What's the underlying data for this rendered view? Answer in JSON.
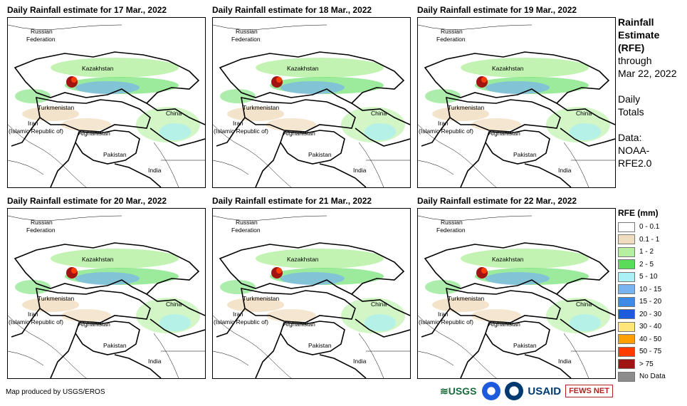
{
  "panels": [
    {
      "title": "Daily Rainfall estimate for 17 Mar., 2022"
    },
    {
      "title": "Daily Rainfall estimate for 18 Mar., 2022"
    },
    {
      "title": "Daily Rainfall estimate for 19 Mar., 2022"
    },
    {
      "title": "Daily Rainfall estimate for 20 Mar., 2022"
    },
    {
      "title": "Daily Rainfall estimate for 21 Mar., 2022"
    },
    {
      "title": "Daily Rainfall estimate for 22 Mar., 2022"
    }
  ],
  "map_labels": {
    "russia_1": "Russian",
    "russia_2": "Federation",
    "kazakhstan": "Kazakhstan",
    "turkmenistan": "Turkmenistan",
    "china": "China",
    "iran_1": "Iran",
    "iran_2": "(Islamic Republic of)",
    "afghanistan": "Afghanistan",
    "pakistan": "Pakistan",
    "india": "India"
  },
  "side": {
    "line1": "Rainfall",
    "line2": "Estimate",
    "line3": "(RFE)",
    "line4": "through",
    "line5": "Mar 22, 2022",
    "line6": "Daily",
    "line7": "Totals",
    "line8": "Data:",
    "line9": "NOAA-",
    "line10": "RFE2.0"
  },
  "legend": {
    "title": "RFE (mm)",
    "items": [
      {
        "label": "0 - 0.1",
        "color": "#ffffff"
      },
      {
        "label": "0.1 - 1",
        "color": "#f0dcbe"
      },
      {
        "label": "1 - 2",
        "color": "#b4f0a0"
      },
      {
        "label": "2 - 5",
        "color": "#5adc5a"
      },
      {
        "label": "5 - 10",
        "color": "#aaf0f5"
      },
      {
        "label": "10 - 15",
        "color": "#78b4f0"
      },
      {
        "label": "15 - 20",
        "color": "#3c8ce6"
      },
      {
        "label": "20 - 30",
        "color": "#1e5adc"
      },
      {
        "label": "30 - 40",
        "color": "#ffe678"
      },
      {
        "label": "40 - 50",
        "color": "#ffa000"
      },
      {
        "label": "50 - 75",
        "color": "#ff3c00"
      },
      {
        "label": "> 75",
        "color": "#a01414"
      },
      {
        "label": "No Data",
        "color": "#8c8c8c"
      }
    ]
  },
  "footer": "Map produced by USGS/EROS",
  "logos": {
    "usgs": "≋USGS",
    "usaid": "USAID",
    "fews": "FEWS NET"
  }
}
